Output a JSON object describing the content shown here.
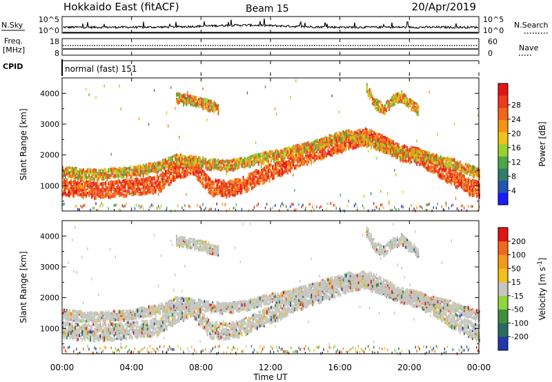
{
  "header": {
    "station": "Hokkaido East (fitACF)",
    "beam": "Beam 15",
    "date": "20/Apr/2019"
  },
  "noise_panel": {
    "left_label": "N.Sky",
    "right_label": "N.Search",
    "ticks_left": [
      "10^5",
      "10^0"
    ],
    "ticks_right": [
      "10^5",
      "10^0"
    ]
  },
  "freq_panel": {
    "left_label_line1": "Freq.",
    "left_label_line2": "[MHz]",
    "right_label": "Nave",
    "ticks_left": [
      "18",
      "8"
    ],
    "ticks_right": [
      "60",
      "0"
    ]
  },
  "cpid_panel": {
    "label": "CPID",
    "program": "normal (fast) 151"
  },
  "time_axis": {
    "title": "Time UT",
    "ticks": [
      "00:00",
      "04:00",
      "08:00",
      "12:00",
      "16:00",
      "20:00",
      "00:00"
    ]
  },
  "chart_data": [
    {
      "type": "heatmap",
      "variable": "power",
      "ylabel": "Slant Range [km]",
      "ylim": [
        180,
        4500
      ],
      "yticks": [
        1000,
        2000,
        3000,
        4000
      ],
      "xlim_hours": [
        0,
        24
      ],
      "colorbar": {
        "label": "Power [dB]",
        "ticks": [
          "4",
          "8",
          "12",
          "16",
          "20",
          "24",
          "28"
        ],
        "colors": [
          "#1a1aff",
          "#2255b0",
          "#2f7f6a",
          "#4aa84a",
          "#9ad12a",
          "#f2c214",
          "#f49412",
          "#f2661a",
          "#ef3a1e",
          "#e61515"
        ]
      },
      "echo_bands": [
        {
          "name": "low",
          "points": [
            [
              0,
              1000
            ],
            [
              2,
              900
            ],
            [
              4,
              1000
            ],
            [
              5.5,
              1100
            ],
            [
              6.5,
              1500
            ],
            [
              7.5,
              1700
            ],
            [
              8.5,
              1000
            ],
            [
              9.5,
              950
            ],
            [
              10.5,
              1100
            ],
            [
              11.5,
              1400
            ],
            [
              12.5,
              1600
            ],
            [
              13.5,
              1900
            ],
            [
              14.5,
              2100
            ],
            [
              15.5,
              2300
            ],
            [
              16.5,
              2500
            ],
            [
              17.5,
              2650
            ],
            [
              18.5,
              2400
            ],
            [
              19.5,
              2100
            ],
            [
              20.5,
              2000
            ],
            [
              21.5,
              1700
            ],
            [
              22.5,
              1300
            ],
            [
              23.5,
              1000
            ],
            [
              24,
              900
            ]
          ]
        },
        {
          "name": "mid",
          "points": [
            [
              0,
              1500
            ],
            [
              2,
              1400
            ],
            [
              4,
              1500
            ],
            [
              5.5,
              1650
            ],
            [
              6.5,
              1900
            ],
            [
              7.5,
              1850
            ],
            [
              8.5,
              1750
            ],
            [
              9.5,
              1700
            ],
            [
              10.5,
              1800
            ],
            [
              11.5,
              1950
            ],
            [
              12.5,
              2050
            ],
            [
              13.5,
              2200
            ],
            [
              14.5,
              2350
            ],
            [
              15.5,
              2550
            ],
            [
              16.5,
              2700
            ],
            [
              17.5,
              2500
            ],
            [
              18.5,
              2300
            ],
            [
              19.5,
              2100
            ],
            [
              20.5,
              2050
            ],
            [
              21.5,
              1900
            ],
            [
              22.5,
              1750
            ],
            [
              23.5,
              1550
            ],
            [
              24,
              1450
            ]
          ]
        },
        {
          "name": "upper",
          "points": [
            [
              6.5,
              3900
            ],
            [
              7.5,
              3800
            ],
            [
              8.5,
              3650
            ],
            [
              9,
              3550
            ]
          ]
        },
        {
          "name": "upper-late",
          "points": [
            [
              17.5,
              4200
            ],
            [
              18,
              3700
            ],
            [
              18.5,
              3550
            ],
            [
              19,
              3800
            ],
            [
              19.5,
              3950
            ],
            [
              20,
              3700
            ],
            [
              20.5,
              3500
            ]
          ]
        }
      ]
    },
    {
      "type": "heatmap",
      "variable": "velocity",
      "ylabel": "Slant Range [km]",
      "ylim": [
        180,
        4500
      ],
      "yticks": [
        1000,
        2000,
        3000,
        4000
      ],
      "xlim_hours": [
        0,
        24
      ],
      "colorbar": {
        "label": "Velocity [m s^-1]",
        "ticks": [
          "200",
          "100",
          "50",
          "15",
          "-15",
          "-50",
          "-100",
          "-200"
        ],
        "colors": [
          "#1f3aa8",
          "#2a6a63",
          "#3d8f3d",
          "#8fd63f",
          "#c6c6c0",
          "#f1c21c",
          "#f39a1e",
          "#f16a1b",
          "#e01414"
        ]
      },
      "dominant_color": "#c6c6c0"
    }
  ]
}
